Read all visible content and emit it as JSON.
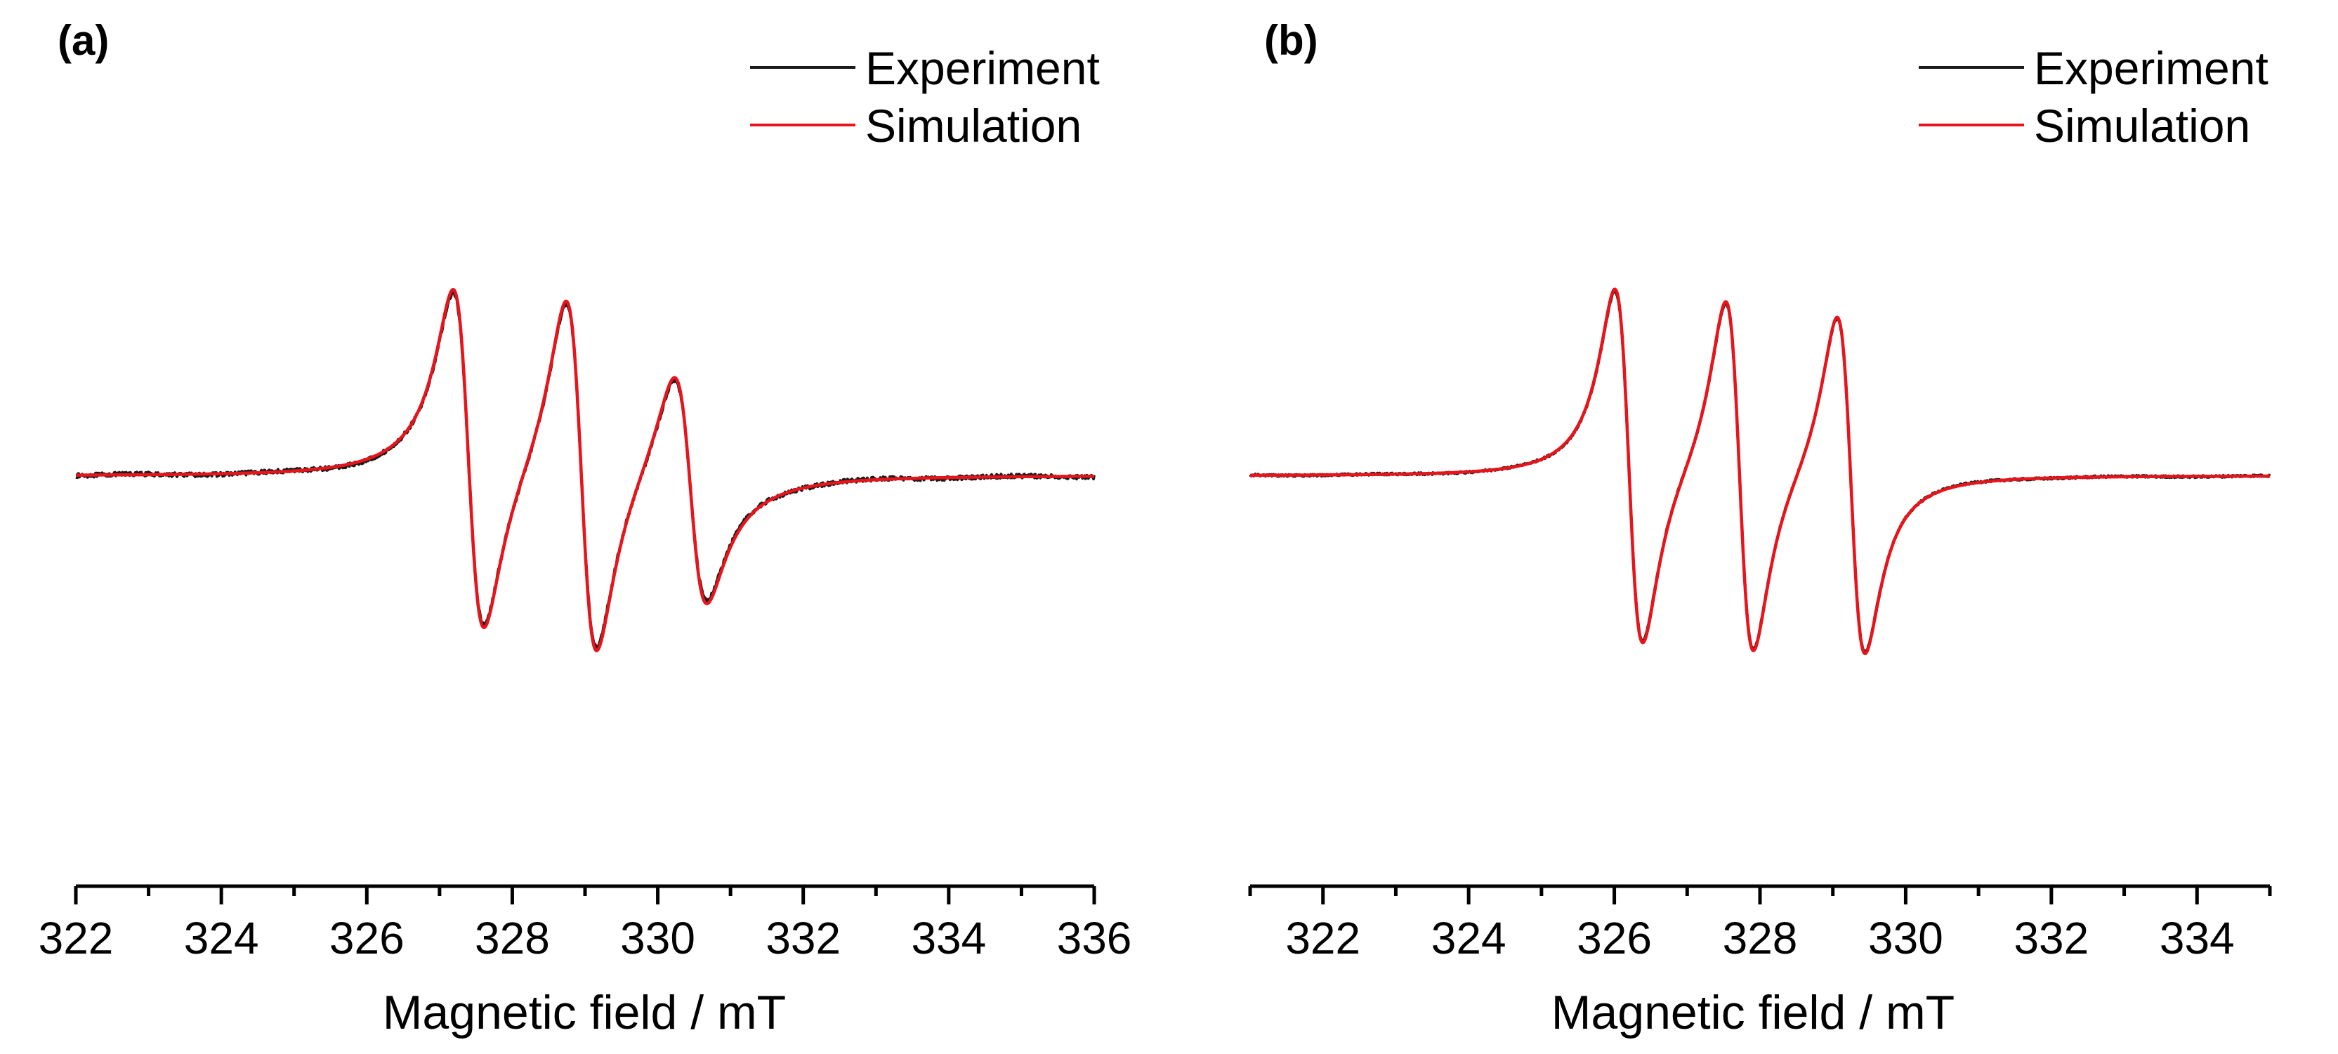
{
  "chart_data": [
    {
      "type": "line",
      "panel_label": "(a)",
      "xlabel": "Magnetic field / mT",
      "ylabel": "",
      "xlim": [
        322,
        336
      ],
      "ylim": [
        -1.05,
        1.05
      ],
      "xticks": [
        322,
        324,
        326,
        328,
        330,
        332,
        334,
        336
      ],
      "xtick_labels": [
        "322",
        "324",
        "326",
        "328",
        "330",
        "332",
        "334",
        "336"
      ],
      "minor_xticks": [
        323,
        325,
        327,
        329,
        331,
        333,
        335
      ],
      "y_axis_visible": false,
      "grid": false,
      "legend": "top-right",
      "lines": [
        {
          "center": 327.4,
          "pp_width": 0.42,
          "pos_amp": 0.97,
          "neg_amp": 0.93,
          "shoulder": 0.08
        },
        {
          "center": 328.95,
          "pp_width": 0.42,
          "pos_amp": 1.0,
          "neg_amp": 1.0,
          "shoulder": 0.08
        },
        {
          "center": 330.45,
          "pp_width": 0.44,
          "pos_amp": 0.63,
          "neg_amp": 0.63,
          "shoulder": 0.08
        }
      ],
      "series": [
        {
          "name": "Experiment",
          "color": "#1a1a1a",
          "noise": 0.012,
          "scale": 0.98
        },
        {
          "name": "Simulation",
          "color": "#e8141b",
          "noise": 0.0,
          "scale": 1.0
        }
      ]
    },
    {
      "type": "line",
      "panel_label": "(b)",
      "xlabel": "Magnetic field / mT",
      "ylabel": "",
      "xlim": [
        321,
        335
      ],
      "ylim": [
        -1.05,
        1.05
      ],
      "xticks": [
        322,
        324,
        326,
        328,
        330,
        332,
        334
      ],
      "xtick_labels": [
        "322",
        "324",
        "326",
        "328",
        "330",
        "332",
        "334"
      ],
      "minor_xticks": [
        321,
        323,
        325,
        327,
        329,
        331,
        333,
        335
      ],
      "y_axis_visible": false,
      "grid": false,
      "legend": "top-right",
      "lines": [
        {
          "center": 326.2,
          "pp_width": 0.38,
          "pos_amp": 1.0,
          "neg_amp": 1.0,
          "shoulder": 0.06
        },
        {
          "center": 327.72,
          "pp_width": 0.38,
          "pos_amp": 1.0,
          "neg_amp": 1.0,
          "shoulder": 0.06
        },
        {
          "center": 329.25,
          "pp_width": 0.38,
          "pos_amp": 0.95,
          "neg_amp": 0.95,
          "shoulder": 0.06
        }
      ],
      "series": [
        {
          "name": "Experiment",
          "color": "#1a1a1a",
          "noise": 0.006,
          "scale": 0.99
        },
        {
          "name": "Simulation",
          "color": "#e8141b",
          "noise": 0.0,
          "scale": 1.0
        }
      ]
    }
  ]
}
